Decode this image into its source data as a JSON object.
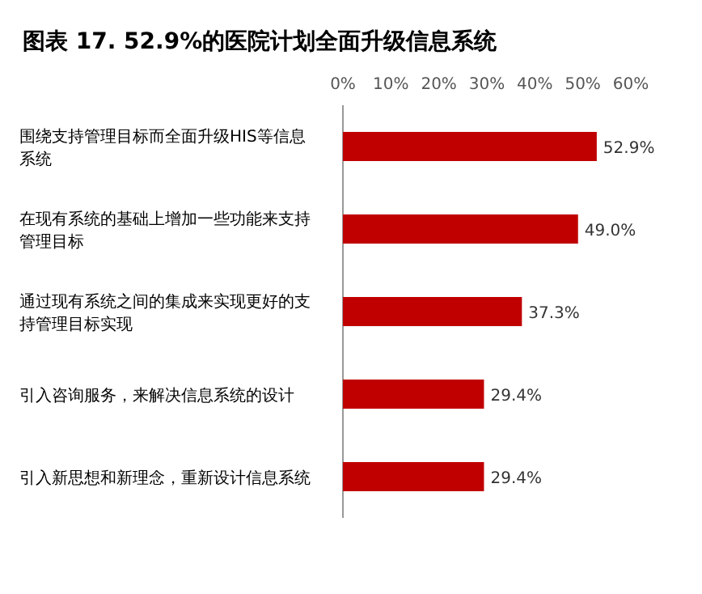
{
  "chart_data": {
    "type": "bar",
    "orientation": "horizontal",
    "title": "图表 17. 52.9%的医院计划全面升级信息系统",
    "categories": [
      "围绕支持管理目标而全面升级HIS等信息系统",
      "在现有系统的基础上增加一些功能来支持管理目标",
      "通过现有系统之间的集成来实现更好的支持管理目标实现",
      "引入咨询服务，来解决信息系统的设计",
      "引入新思想和新理念，重新设计信息系统"
    ],
    "values": [
      52.9,
      49.0,
      37.3,
      29.4,
      29.4
    ],
    "value_labels": [
      "52.9%",
      "49.0%",
      "37.3%",
      "29.4%",
      "29.4%"
    ],
    "color": "#c00000",
    "xlim": [
      0,
      60
    ],
    "xticks": [
      {
        "value": 0,
        "label": "0%"
      },
      {
        "value": 10,
        "label": "10%"
      },
      {
        "value": 20,
        "label": "20%"
      },
      {
        "value": 30,
        "label": "30%"
      },
      {
        "value": 40,
        "label": "40%"
      },
      {
        "value": 50,
        "label": "50%"
      },
      {
        "value": 60,
        "label": "60%"
      }
    ],
    "grid": false
  }
}
